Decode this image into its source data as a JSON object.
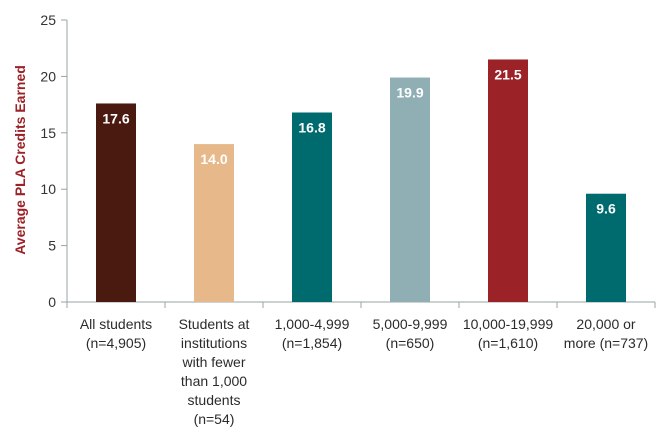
{
  "chart_data": {
    "type": "bar",
    "title": "",
    "xlabel": "",
    "ylabel": "Average PLA Credits Earned",
    "ylim": [
      0,
      25
    ],
    "yticks": [
      0,
      5,
      10,
      15,
      20,
      25
    ],
    "grid": false,
    "categories": [
      [
        "All students",
        "(n=4,905)"
      ],
      [
        "Students at",
        "institutions",
        "with fewer",
        "than 1,000",
        "students",
        "(n=54)"
      ],
      [
        "1,000-4,999",
        "(n=1,854)"
      ],
      [
        "5,000-9,999",
        "(n=650)"
      ],
      [
        "10,000-19,999",
        "(n=1,610)"
      ],
      [
        "20,000 or",
        "more (n=737)"
      ]
    ],
    "values": [
      17.6,
      14.0,
      16.8,
      19.9,
      21.5,
      9.6
    ],
    "value_labels": [
      "17.6",
      "14.0",
      "16.8",
      "19.9",
      "21.5",
      "9.6"
    ],
    "colors": [
      "#4a1a10",
      "#e6b88a",
      "#006b6f",
      "#8fafb4",
      "#9b2226",
      "#006b6f"
    ],
    "axis_color": "#9aa3a4",
    "ylabel_color": "#9b2226"
  }
}
